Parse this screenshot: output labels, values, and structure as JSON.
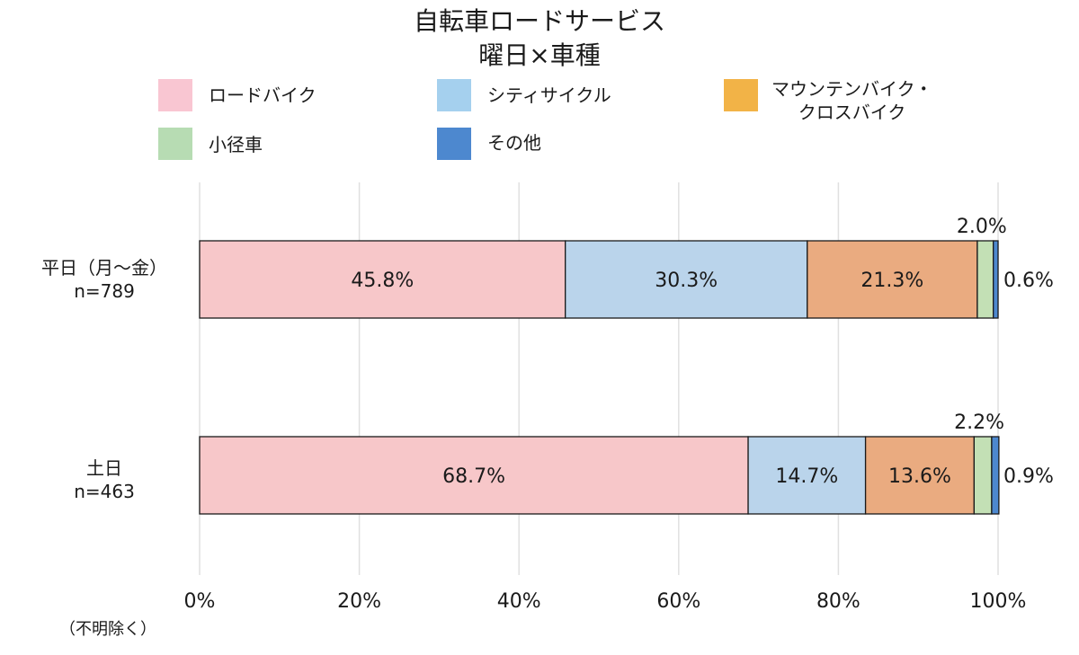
{
  "chart_data": {
    "type": "bar",
    "orientation": "horizontal",
    "stacked": "percent",
    "title": "自転車ロードサービス",
    "subtitle": "曜日×車種",
    "categories": [
      "平日（月～金）\nn=789",
      "土日\nn=463"
    ],
    "series": [
      {
        "name": "ロードバイク",
        "values": [
          45.8,
          68.7
        ],
        "color": "#f7c7c9",
        "legend_color": "#f9c6d2"
      },
      {
        "name": "シティサイクル",
        "values": [
          30.3,
          14.7
        ],
        "color": "#bad4eb",
        "legend_color": "#a5d0ee"
      },
      {
        "name": "マウンテンバイク・\nクロスバイク",
        "values": [
          21.3,
          13.6
        ],
        "color": "#eaab80",
        "legend_color": "#f2b347"
      },
      {
        "name": "小径車",
        "values": [
          2.0,
          2.2
        ],
        "color": "#c3e0b5",
        "legend_color": "#b7dcb3"
      },
      {
        "name": "その他",
        "values": [
          0.6,
          0.9
        ],
        "color": "#4d88cf",
        "legend_color": "#4d88cf"
      }
    ],
    "data_labels": [
      [
        "45.8%",
        "30.3%",
        "21.3%",
        "2.0%",
        "0.6%"
      ],
      [
        "68.7%",
        "14.7%",
        "13.6%",
        "2.2%",
        "0.9%"
      ]
    ],
    "x_ticks": [
      "0%",
      "20%",
      "40%",
      "60%",
      "80%",
      "100%"
    ],
    "xlim": [
      0,
      100
    ],
    "grid": true,
    "legend_position": "top",
    "footnote": "（不明除く）"
  }
}
